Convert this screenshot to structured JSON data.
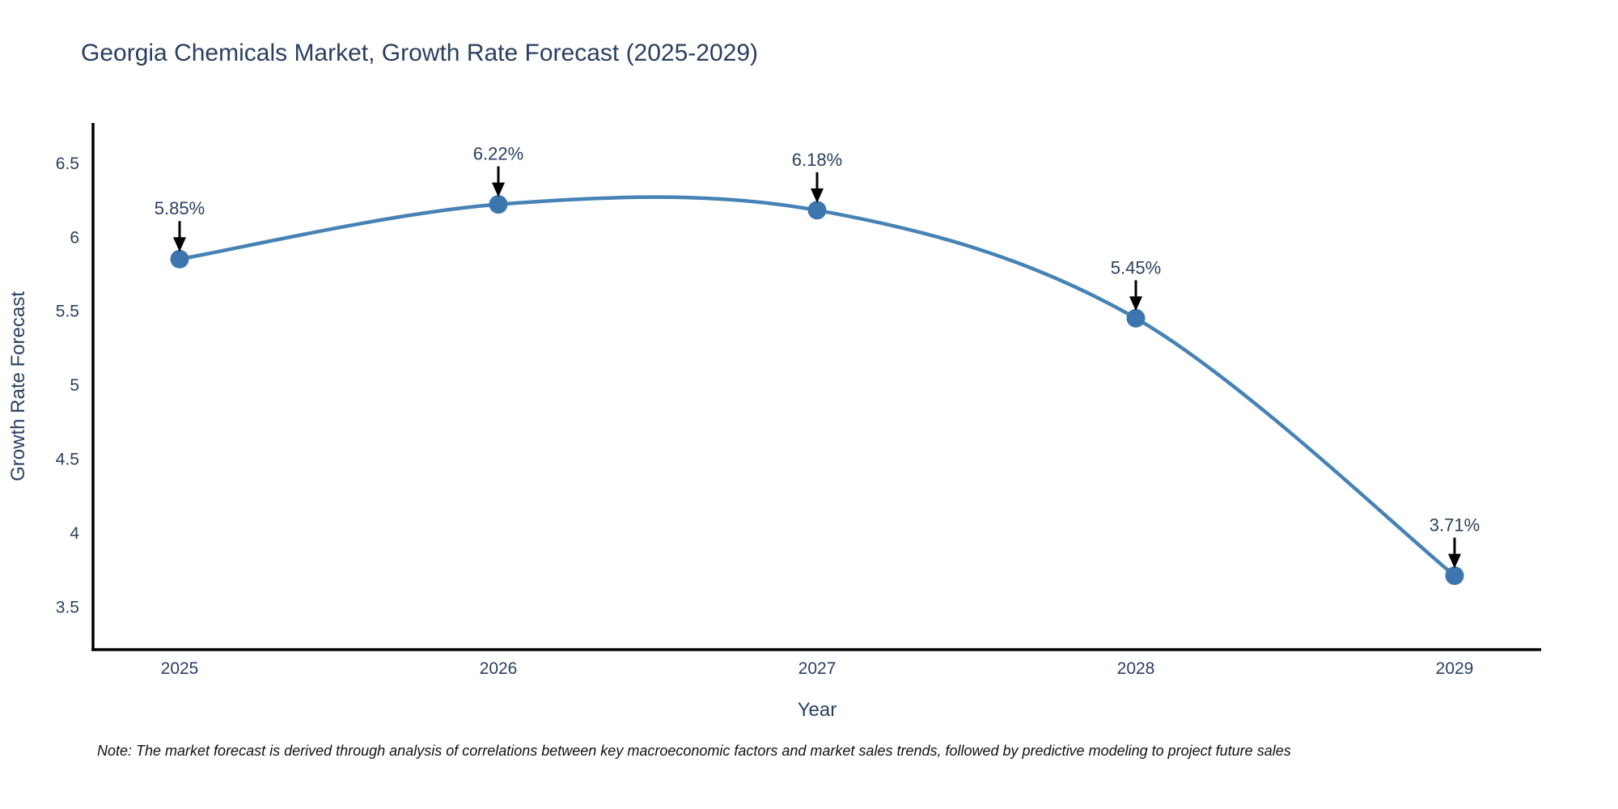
{
  "title": "Georgia Chemicals Market, Growth Rate Forecast (2025-2029)",
  "note": "Note: The market forecast is derived through analysis of correlations between key macroeconomic factors and market sales trends, followed by predictive modeling to project future sales",
  "chart_data": {
    "type": "line",
    "line_shape": "spline",
    "categories": [
      "2025",
      "2026",
      "2027",
      "2028",
      "2029"
    ],
    "series": [
      {
        "name": "Growth Rate Forecast",
        "values": [
          5.85,
          6.22,
          6.18,
          5.45,
          3.71
        ]
      }
    ],
    "point_labels": [
      "5.85%",
      "6.22%",
      "6.18%",
      "5.45%",
      "3.71%"
    ],
    "title": "Georgia Chemicals Market, Growth Rate Forecast (2025-2029)",
    "xlabel": "Year",
    "ylabel": "Growth Rate Forecast",
    "yticks": [
      3.5,
      4,
      4.5,
      5,
      5.5,
      6,
      6.5
    ],
    "ylim": [
      3.21,
      6.77
    ],
    "grid": false,
    "legend": "none",
    "colors": {
      "line": "#4682B4",
      "marker": "#3D76AE",
      "axis": "#000000",
      "text": "#2a3f5f",
      "annotation_text": "#2a3f5f",
      "annotation_arrow": "#000000",
      "note_text": "#111111",
      "background": "#ffffff"
    }
  }
}
